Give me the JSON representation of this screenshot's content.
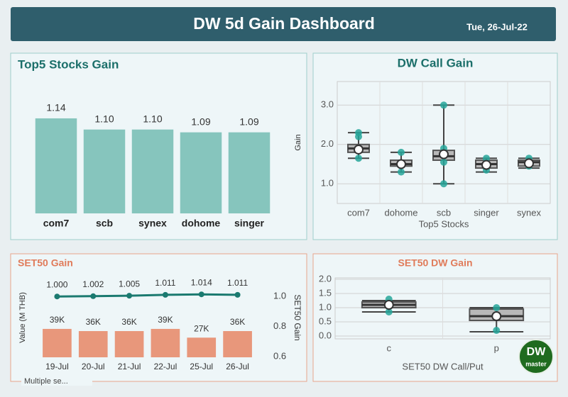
{
  "header": {
    "title": "DW 5d Gain Dashboard",
    "date": "Tue, 26-Jul-22"
  },
  "chart_data": [
    {
      "type": "bar",
      "title": "Top5 Stocks Gain",
      "categories": [
        "com7",
        "scb",
        "synex",
        "dohome",
        "singer"
      ],
      "values": [
        1.14,
        1.1,
        1.1,
        1.09,
        1.09
      ],
      "value_labels": [
        "1.14",
        "1.10",
        "1.10",
        "1.09",
        "1.09"
      ],
      "color": "#86c5bd",
      "ylim": [
        0.8,
        1.15
      ]
    },
    {
      "type": "box",
      "title": "DW Call Gain",
      "y_label": "Gain",
      "x_label": "Top5 Stocks",
      "categories": [
        "com7",
        "dohome",
        "scb",
        "singer",
        "synex"
      ],
      "boxes": [
        {
          "min": 1.65,
          "q1": 1.8,
          "median": 1.9,
          "q3": 2.0,
          "max": 2.3,
          "mean": 1.87,
          "points": [
            2.3,
            2.2,
            1.65
          ]
        },
        {
          "min": 1.3,
          "q1": 1.45,
          "median": 1.5,
          "q3": 1.6,
          "max": 1.8,
          "mean": 1.5,
          "points": [
            1.8,
            1.3
          ]
        },
        {
          "min": 1.0,
          "q1": 1.6,
          "median": 1.7,
          "q3": 1.85,
          "max": 3.0,
          "mean": 1.75,
          "points": [
            3.0,
            1.9,
            1.55,
            1.0
          ]
        },
        {
          "min": 1.3,
          "q1": 1.4,
          "median": 1.5,
          "q3": 1.6,
          "max": 1.65,
          "mean": 1.48,
          "points": [
            1.65,
            1.35
          ]
        },
        {
          "min": 1.4,
          "q1": 1.45,
          "median": 1.55,
          "q3": 1.6,
          "max": 1.65,
          "mean": 1.52,
          "points": [
            1.65,
            1.45
          ]
        }
      ],
      "color": "#26a69a",
      "ylim": [
        0.5,
        3.6
      ],
      "yticks": [
        {
          "value": 1,
          "label": "1.0"
        },
        {
          "value": 2,
          "label": "2.0"
        },
        {
          "value": 3,
          "label": "3.0"
        }
      ],
      "grid": true
    },
    {
      "type": "combo",
      "title": "SET50 Gain",
      "y_label": "Value (M THB)",
      "y2_label": "SET50 Gain",
      "categories": [
        "19-Jul",
        "20-Jul",
        "21-Jul",
        "22-Jul",
        "25-Jul",
        "26-Jul"
      ],
      "series": [
        {
          "type": "bar",
          "color": "#e8977b",
          "values": [
            39000,
            36000,
            36000,
            39000,
            27000,
            36000
          ],
          "value_labels": [
            "39K",
            "36K",
            "36K",
            "39K",
            "27K",
            "36K"
          ]
        },
        {
          "type": "line",
          "axis": "y2",
          "color": "#1b7a70",
          "values": [
            1.0,
            1.002,
            1.005,
            1.011,
            1.014,
            1.011
          ],
          "value_labels": [
            "1.000",
            "1.002",
            "1.005",
            "1.011",
            "1.014",
            "1.011"
          ]
        }
      ],
      "ylim": [
        0,
        110000
      ],
      "y2lim": [
        0.6,
        1.1
      ],
      "y2ticks": [
        0.6,
        0.8,
        {
          "value": 1,
          "label": "1.0"
        }
      ],
      "filter": "Multiple se..."
    },
    {
      "type": "box",
      "title": "SET50 DW Gain",
      "x_label": "SET50 DW Call/Put",
      "categories": [
        "c",
        "p"
      ],
      "boxes": [
        {
          "min": 0.85,
          "q1": 1.0,
          "median": 1.1,
          "q3": 1.2,
          "max": 1.25,
          "mean": 1.1,
          "points": [
            1.3,
            0.85
          ]
        },
        {
          "min": 0.15,
          "q1": 0.55,
          "median": 0.7,
          "q3": 0.95,
          "max": 1.0,
          "mean": 0.7,
          "points": [
            1.0,
            0.2
          ]
        }
      ],
      "color": "#26a69a",
      "ylim": [
        -0.1,
        2.05
      ],
      "yticks": [
        {
          "value": 0,
          "label": "0.0"
        },
        0.5,
        {
          "value": 1,
          "label": "1.0"
        },
        1.5,
        {
          "value": 2,
          "label": "2.0"
        }
      ],
      "grid": true
    }
  ],
  "logo": {
    "text": "DW",
    "subtext": "master"
  }
}
